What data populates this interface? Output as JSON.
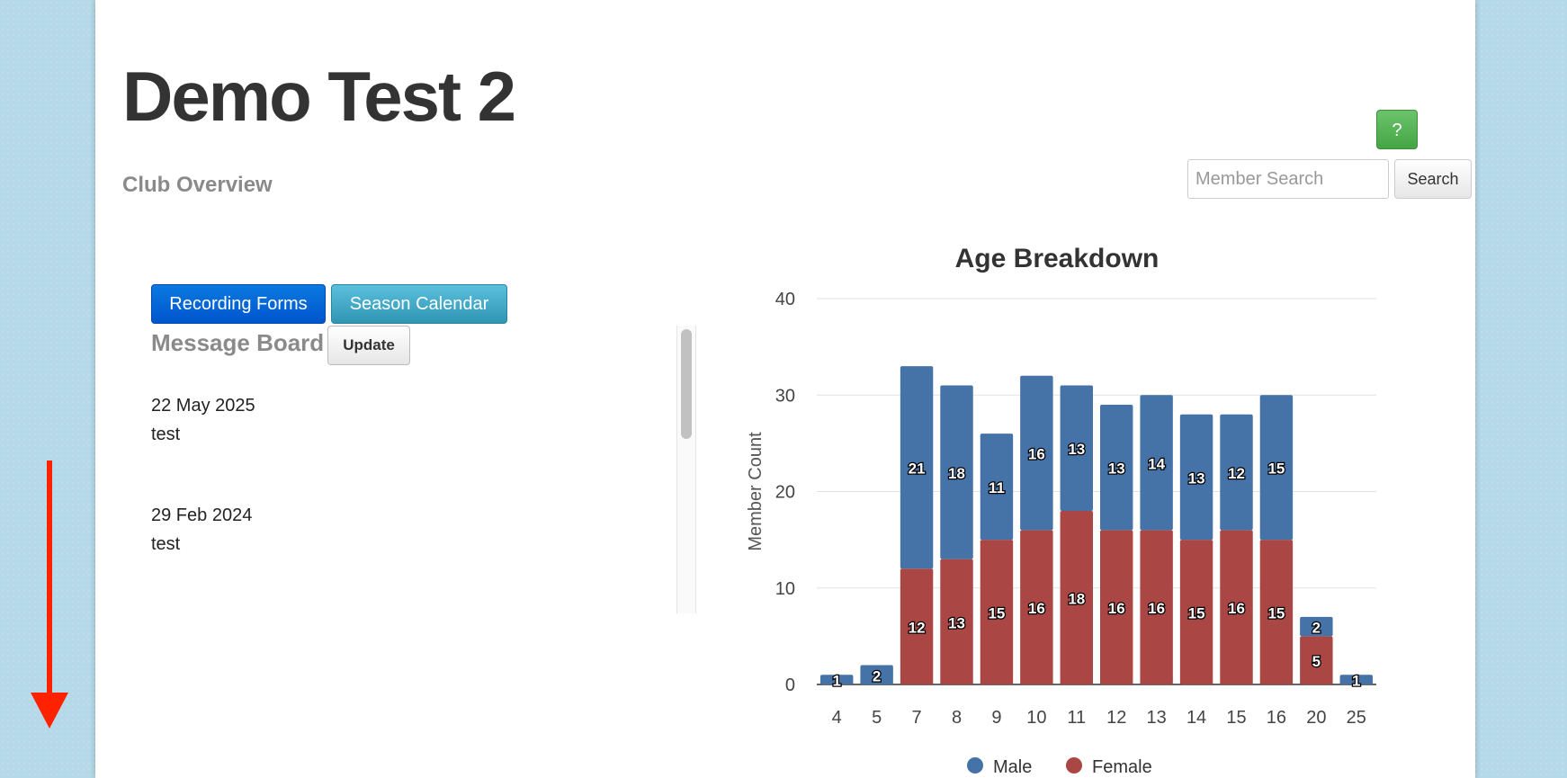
{
  "header": {
    "club_name": "Demo Test 2",
    "subtitle": "Club Overview",
    "help_label": "?",
    "search_placeholder": "Member Search",
    "search_label": "Search"
  },
  "actions": {
    "recording_forms": "Recording Forms",
    "season_calendar": "Season Calendar"
  },
  "message_board": {
    "title": "Message Board",
    "update_label": "Update",
    "messages": [
      {
        "date": "22 May 2025",
        "text": "test"
      },
      {
        "date": "29 Feb 2024",
        "text": "test"
      }
    ]
  },
  "colors": {
    "male": "#4572a7",
    "female": "#aa4643",
    "primary_button": "#0064d6",
    "info_button": "#49afcd",
    "help_button": "#51b151",
    "scroll_arrow": "#ff2200"
  },
  "chart_data": {
    "type": "bar",
    "stacked": true,
    "title": "Age Breakdown",
    "xlabel": "",
    "ylabel": "Member Count",
    "ylim": [
      0,
      40
    ],
    "yticks": [
      0,
      10,
      20,
      30,
      40
    ],
    "categories": [
      "4",
      "5",
      "7",
      "8",
      "9",
      "10",
      "11",
      "12",
      "13",
      "14",
      "15",
      "16",
      "20",
      "25"
    ],
    "series": [
      {
        "name": "Male",
        "values": [
          1,
          2,
          21,
          18,
          11,
          16,
          13,
          13,
          14,
          13,
          12,
          15,
          2,
          1
        ]
      },
      {
        "name": "Female",
        "values": [
          0,
          0,
          12,
          13,
          15,
          16,
          18,
          16,
          16,
          15,
          16,
          15,
          5,
          0
        ]
      }
    ],
    "grid": true,
    "legend": "bottom"
  },
  "icons": {
    "scroll_indicator": "arrow-down-icon"
  }
}
